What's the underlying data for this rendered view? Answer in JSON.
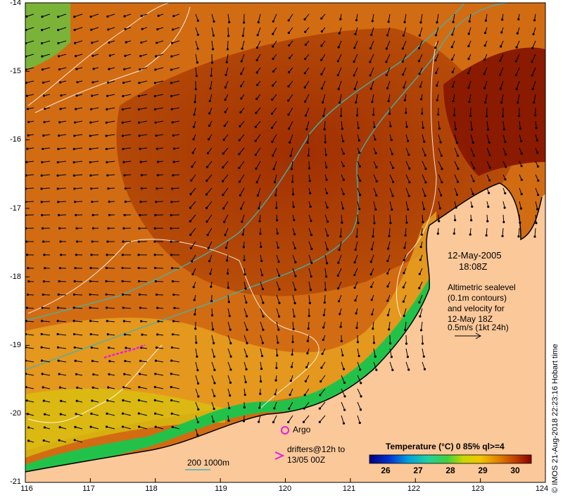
{
  "map": {
    "y_ticks": [
      "-14",
      "-15",
      "-16",
      "-17",
      "-18",
      "-19",
      "-20",
      "-21"
    ],
    "x_ticks": [
      "116",
      "117",
      "118",
      "119",
      "120",
      "121",
      "122",
      "123",
      "124"
    ],
    "lon_range": [
      116,
      124
    ],
    "lat_range": [
      -21,
      -14
    ]
  },
  "annotations": {
    "date": "12-May-2005",
    "time": "18:08Z",
    "alt_line1": "Altimetric sealevel",
    "alt_line2": "(0.1m contours)",
    "alt_line3": "and velocity for",
    "alt_line4": "12-May 18Z",
    "alt_line5": "0.5m/s (1kt 24h)",
    "argo_label": "Argo",
    "drifters_line1": "drifters@12h to",
    "drifters_line2": "13/05 00Z",
    "depth_label": "200  1000m",
    "credit": "© IMOS 21-Aug-2018 22:23:16 Hobart time"
  },
  "colorbar": {
    "title": "Temperature (°C) 0 85% ql>=4",
    "ticks": [
      "26",
      "27",
      "28",
      "29",
      "30"
    ],
    "min": 25.5,
    "max": 30.5
  },
  "colors": {
    "land": "#fbc89a",
    "ocean_warm": "#d06a10",
    "ocean_hot": "#9a2400",
    "coastal_green": "#22c24a",
    "isobath": "#3fb4b4",
    "drifter": "#e020e0",
    "contour": "#ffffff"
  }
}
